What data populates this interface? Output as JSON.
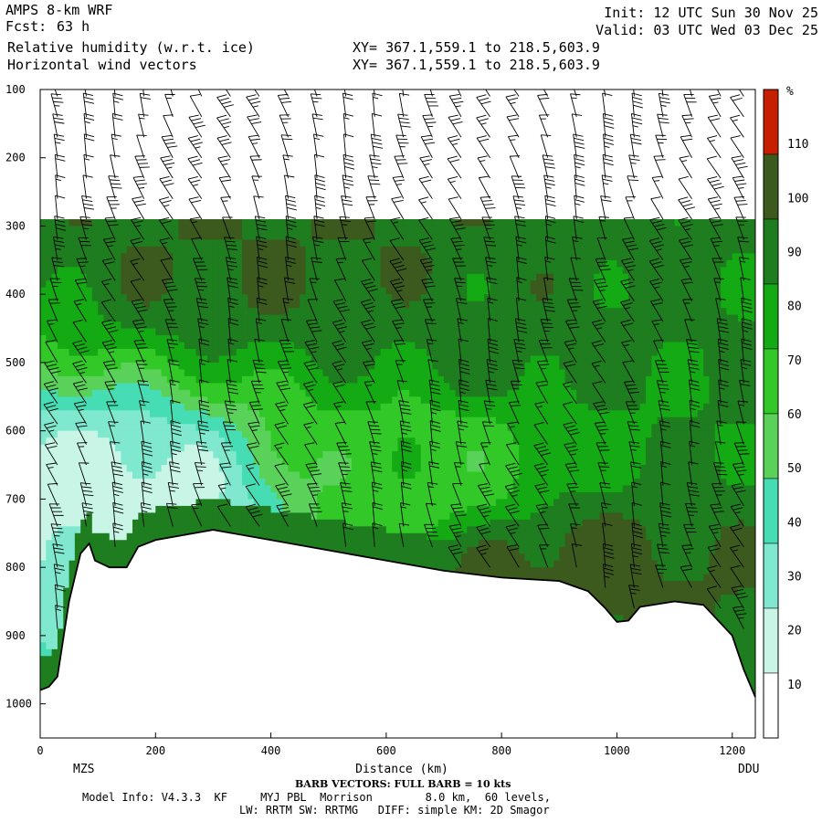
{
  "header": {
    "model": "AMPS 8-km WRF",
    "fcst_label": "Fcst:",
    "fcst_value": "63 h",
    "init": "Init: 12 UTC Sun 30 Nov 25",
    "valid": "Valid: 03 UTC Wed 03 Dec 25",
    "field1": "Relative humidity (w.r.t. ice)",
    "field2": "Horizontal wind vectors",
    "xy1": "XY= 367.1,559.1 to 218.5,603.9",
    "xy2": "XY= 367.1,559.1 to 218.5,603.9"
  },
  "footer": {
    "barb_note": "BARB VECTORS: FULL BARB = 10 kts",
    "model_info": "Model Info: V4.3.3  KF     MYJ PBL  Morrison        8.0 km,  60 levels,",
    "model_info2": "LW: RRTM SW: RRTMG   DIFF: simple KM: 2D Smagor"
  },
  "chart_data": {
    "type": "heatmap",
    "title": "Relative humidity (w.r.t. ice)",
    "xlabel": "Distance (km)",
    "ylabel": "",
    "xlim": [
      0,
      1240
    ],
    "ylim": [
      100,
      1050
    ],
    "y_inverted": true,
    "x_ticks": [
      0,
      200,
      400,
      600,
      800,
      1000,
      1200
    ],
    "y_ticks": [
      100,
      200,
      300,
      400,
      500,
      600,
      700,
      800,
      900,
      1000
    ],
    "endpoints": {
      "left": "MZS",
      "right": "DDU"
    },
    "colorbar": {
      "unit": "%",
      "ticks": [
        10,
        20,
        30,
        40,
        50,
        60,
        70,
        80,
        90,
        100,
        110
      ],
      "levels": [
        {
          "min": 0,
          "max": 30,
          "color": "#ffffff"
        },
        {
          "min": 30,
          "max": 40,
          "color": "#c8f5e6"
        },
        {
          "min": 40,
          "max": 50,
          "color": "#7fe8cf"
        },
        {
          "min": 50,
          "max": 60,
          "color": "#46dcb4"
        },
        {
          "min": 60,
          "max": 70,
          "color": "#5ad25a"
        },
        {
          "min": 70,
          "max": 80,
          "color": "#32c828"
        },
        {
          "min": 80,
          "max": 90,
          "color": "#14aa14"
        },
        {
          "min": 90,
          "max": 100,
          "color": "#1e7d1e"
        },
        {
          "min": 100,
          "max": 110,
          "color": "#3c5a1e"
        },
        {
          "min": 110,
          "max": 120,
          "color": "#c81e00"
        }
      ]
    },
    "terrain_surface": [
      {
        "x": 0,
        "p": 980
      },
      {
        "x": 15,
        "p": 975
      },
      {
        "x": 30,
        "p": 960
      },
      {
        "x": 50,
        "p": 850
      },
      {
        "x": 70,
        "p": 780
      },
      {
        "x": 85,
        "p": 765
      },
      {
        "x": 95,
        "p": 790
      },
      {
        "x": 120,
        "p": 800
      },
      {
        "x": 150,
        "p": 800
      },
      {
        "x": 170,
        "p": 770
      },
      {
        "x": 200,
        "p": 760
      },
      {
        "x": 300,
        "p": 745
      },
      {
        "x": 400,
        "p": 760
      },
      {
        "x": 500,
        "p": 775
      },
      {
        "x": 600,
        "p": 790
      },
      {
        "x": 700,
        "p": 805
      },
      {
        "x": 800,
        "p": 815
      },
      {
        "x": 900,
        "p": 820
      },
      {
        "x": 950,
        "p": 835
      },
      {
        "x": 980,
        "p": 860
      },
      {
        "x": 1000,
        "p": 880
      },
      {
        "x": 1020,
        "p": 878
      },
      {
        "x": 1040,
        "p": 858
      },
      {
        "x": 1100,
        "p": 850
      },
      {
        "x": 1150,
        "p": 855
      },
      {
        "x": 1200,
        "p": 900
      },
      {
        "x": 1220,
        "p": 950
      },
      {
        "x": 1240,
        "p": 990
      }
    ],
    "humid_layer_top_hPa": 290,
    "rh_features": [
      {
        "x": 330,
        "p": 330,
        "rh": 100
      },
      {
        "x": 520,
        "p": 310,
        "rh": 100
      },
      {
        "x": 800,
        "p": 460,
        "rh": 95
      },
      {
        "x": 900,
        "p": 820,
        "rh": 105
      },
      {
        "x": 150,
        "p": 700,
        "rh": 35
      },
      {
        "x": 700,
        "p": 650,
        "rh": 75
      }
    ],
    "wind_barbs": {
      "x_columns_km": [
        30,
        80,
        130,
        180,
        230,
        280,
        330,
        380,
        430,
        480,
        530,
        580,
        630,
        680,
        730,
        780,
        830,
        880,
        930,
        980,
        1030,
        1080,
        1130,
        1180,
        1220
      ],
      "levels_hPa": [
        110,
        140,
        170,
        200,
        230,
        260,
        290,
        320,
        350,
        380,
        410,
        440,
        470,
        500,
        530,
        560,
        590,
        620,
        650,
        680,
        710,
        740,
        770,
        800,
        830,
        860,
        890
      ],
      "speeds_kts": [
        40,
        35,
        30,
        25,
        20,
        15,
        10
      ]
    }
  }
}
